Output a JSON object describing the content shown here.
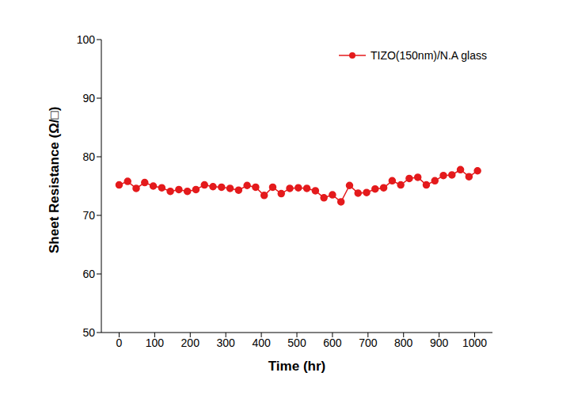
{
  "chart_data": {
    "type": "line",
    "x_label": "Time (hr)",
    "y_label": "Sheet Resistance (Ω/□)",
    "xlim": [
      -50,
      1050
    ],
    "xticks": [
      0,
      100,
      200,
      300,
      400,
      500,
      600,
      700,
      800,
      900,
      1000
    ],
    "ylim": [
      50,
      100
    ],
    "yticks": [
      50,
      60,
      70,
      80,
      90,
      100
    ],
    "grid": false,
    "legend": "top-right",
    "series": [
      {
        "name": "TIZO(150nm)/N.A glass",
        "color": "#e41a1c",
        "marker": "circle",
        "line_style": "solid",
        "x": [
          0,
          24,
          48,
          72,
          96,
          120,
          144,
          168,
          192,
          216,
          240,
          264,
          288,
          312,
          336,
          360,
          384,
          408,
          432,
          456,
          480,
          504,
          528,
          552,
          576,
          600,
          624,
          648,
          672,
          696,
          720,
          744,
          768,
          792,
          816,
          840,
          864,
          888,
          912,
          936,
          960,
          984,
          1008
        ],
        "values": [
          75.2,
          75.8,
          74.6,
          75.6,
          75.0,
          74.7,
          74.1,
          74.4,
          74.1,
          74.4,
          75.2,
          74.9,
          74.8,
          74.6,
          74.3,
          75.1,
          74.8,
          73.4,
          74.8,
          73.7,
          74.6,
          74.7,
          74.6,
          74.2,
          73.0,
          73.5,
          72.3,
          75.1,
          73.8,
          73.9,
          74.5,
          74.7,
          75.9,
          75.2,
          76.3,
          76.5,
          75.2,
          75.9,
          76.8,
          76.9,
          77.8,
          76.6,
          77.6
        ]
      }
    ]
  }
}
